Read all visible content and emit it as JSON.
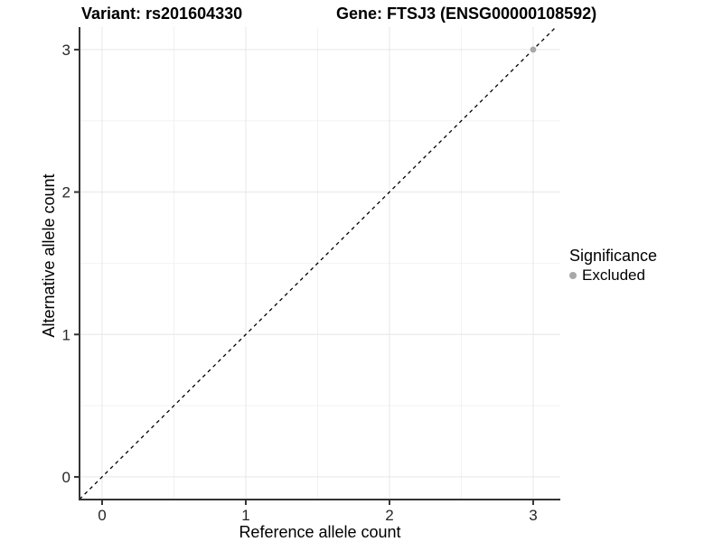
{
  "chart_data": {
    "type": "scatter",
    "title_left": "Variant: rs201604330",
    "title_right": "Gene: FTSJ3 (ENSG00000108592)",
    "xlabel": "Reference allele count",
    "ylabel": "Alternative allele count",
    "x_ticks": [
      0,
      1,
      2,
      3
    ],
    "y_ticks": [
      0,
      1,
      2,
      3
    ],
    "xlim": [
      -0.157,
      3.189
    ],
    "ylim": [
      -0.159,
      3.158
    ],
    "grid": {
      "major": true,
      "minor": true,
      "major_color": "#e6e6e6",
      "minor_color": "#f2f2f2"
    },
    "axis_line_color": "#333333",
    "tick_color": "#333333",
    "reference_line": {
      "slope": 1,
      "intercept": 0,
      "style": "dashed",
      "color": "#000000"
    },
    "series": [
      {
        "name": "Excluded",
        "color": "#a8a8a8",
        "points": [
          {
            "x": 3,
            "y": 3
          }
        ]
      }
    ],
    "legend": {
      "title": "Significance",
      "position": "right",
      "items": [
        {
          "label": "Excluded",
          "color": "#a8a8a8"
        }
      ]
    }
  }
}
